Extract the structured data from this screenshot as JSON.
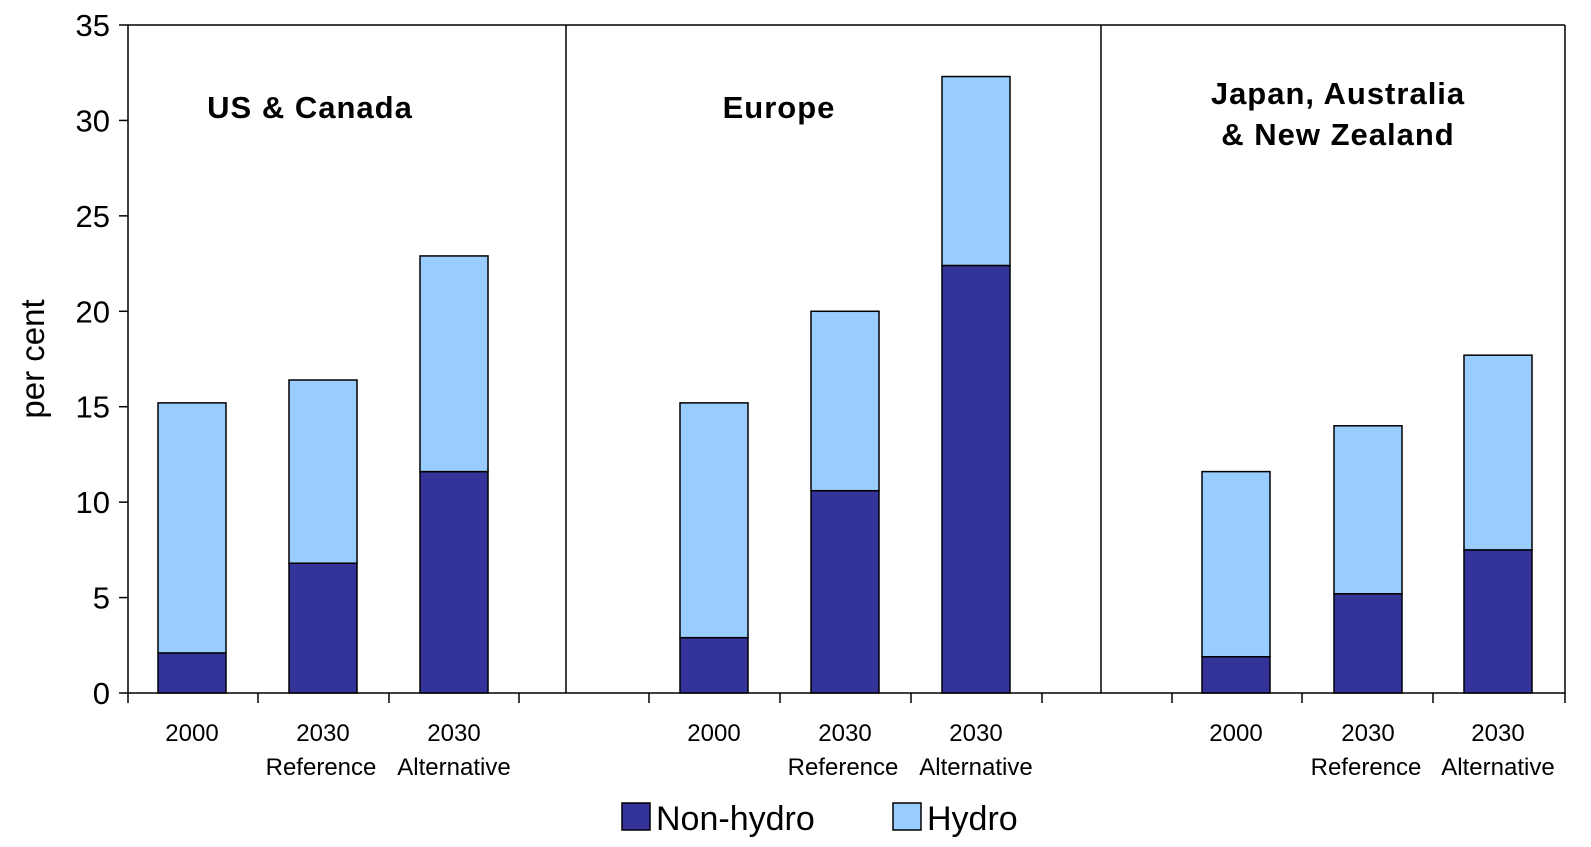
{
  "chart_data": {
    "type": "bar",
    "stacked": true,
    "ylabel": "per cent",
    "ylim": [
      0,
      35
    ],
    "yticks": [
      0,
      5,
      10,
      15,
      20,
      25,
      30,
      35
    ],
    "grid": false,
    "legend_position": "bottom-center",
    "colors": {
      "non_hydro": "#333399",
      "hydro": "#99ccff"
    },
    "legend": [
      "Non-hydro",
      "Hydro"
    ],
    "panels": [
      {
        "title": "US & Canada",
        "categories": [
          {
            "year": "2000",
            "scenario": ""
          },
          {
            "year": "2030",
            "scenario": "Reference"
          },
          {
            "year": "2030",
            "scenario": "Alternative"
          }
        ],
        "series": [
          {
            "name": "Non-hydro",
            "values": [
              2.1,
              6.8,
              11.6
            ]
          },
          {
            "name": "Hydro",
            "values": [
              13.1,
              9.6,
              11.3
            ]
          }
        ]
      },
      {
        "title": "Europe",
        "categories": [
          {
            "year": "2000",
            "scenario": ""
          },
          {
            "year": "2030",
            "scenario": "Reference"
          },
          {
            "year": "2030",
            "scenario": "Alternative"
          }
        ],
        "series": [
          {
            "name": "Non-hydro",
            "values": [
              2.9,
              10.6,
              22.4
            ]
          },
          {
            "name": "Hydro",
            "values": [
              12.3,
              9.4,
              9.9
            ]
          }
        ]
      },
      {
        "title": "Japan, Australia\n& New Zealand",
        "categories": [
          {
            "year": "2000",
            "scenario": ""
          },
          {
            "year": "2030",
            "scenario": "Reference"
          },
          {
            "year": "2030",
            "scenario": "Alternative"
          }
        ],
        "series": [
          {
            "name": "Non-hydro",
            "values": [
              1.9,
              5.2,
              7.5
            ]
          },
          {
            "name": "Hydro",
            "values": [
              9.7,
              8.8,
              10.2
            ]
          }
        ]
      }
    ]
  }
}
